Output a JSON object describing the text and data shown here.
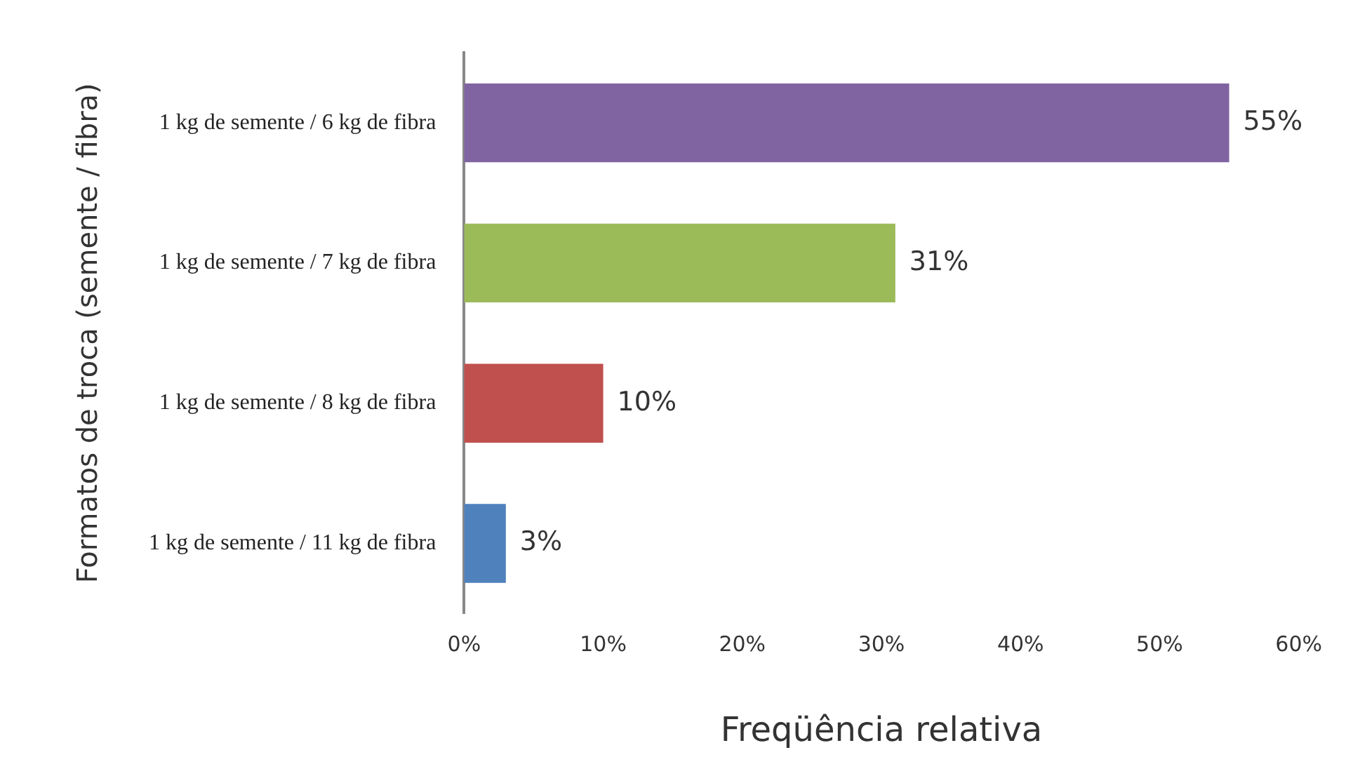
{
  "chart_data": {
    "type": "bar",
    "orientation": "horizontal",
    "categories": [
      "1 kg de semente / 6 kg de fibra",
      "1 kg de semente / 7 kg de fibra",
      "1 kg de semente / 8 kg de fibra",
      "1 kg de semente / 11 kg de fibra"
    ],
    "values": [
      55,
      31,
      10,
      3
    ],
    "colors": [
      "#8064a2",
      "#9bbb59",
      "#c0504d",
      "#4f81bd"
    ],
    "value_labels": [
      "55%",
      "31%",
      "10%",
      "3%"
    ],
    "xlim": [
      0,
      60
    ],
    "xticks": [
      {
        "value": 0,
        "label": "0%"
      },
      {
        "value": 10,
        "label": "10%"
      },
      {
        "value": 20,
        "label": "20%"
      },
      {
        "value": 30,
        "label": "30%"
      },
      {
        "value": 40,
        "label": "40%"
      },
      {
        "value": 50,
        "label": "50%"
      },
      {
        "value": 60,
        "label": "60%"
      }
    ],
    "xlabel": "Freqüência relativa",
    "ylabel": "Formatos de troca (semente / fibra)",
    "grid": false,
    "legend": false
  }
}
